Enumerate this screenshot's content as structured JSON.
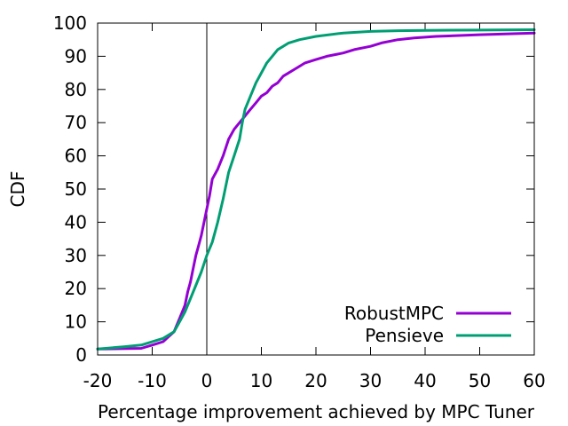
{
  "chart_data": {
    "type": "line",
    "title": "",
    "xlabel": "Percentage improvement achieved by MPC Tuner",
    "ylabel": "CDF",
    "xlim": [
      -20,
      60
    ],
    "ylim": [
      0,
      100
    ],
    "xticks": [
      -20,
      -10,
      0,
      10,
      20,
      30,
      40,
      50,
      60
    ],
    "yticks": [
      0,
      10,
      20,
      30,
      40,
      50,
      60,
      70,
      80,
      90,
      100
    ],
    "xtick_labels": [
      "-20",
      "-10",
      "0",
      "10",
      "20",
      "30",
      "40",
      "50",
      "60"
    ],
    "ytick_labels": [
      "0",
      "10",
      "20",
      "30",
      "40",
      "50",
      "60",
      "70",
      "80",
      "90",
      "100"
    ],
    "grid": false,
    "legend_position": "bottom-right",
    "reference_line_x": 0,
    "series": [
      {
        "name": "RobustMPC",
        "color": "#9400d3",
        "x": [
          -20,
          -12,
          -10,
          -8,
          -7,
          -6,
          -5,
          -4,
          -3.5,
          -3,
          -2.5,
          -2,
          -1.5,
          -1,
          -0.5,
          0,
          0.5,
          1,
          2,
          3,
          4,
          5,
          6,
          7,
          8,
          9,
          10,
          11,
          12,
          13,
          14,
          15,
          16,
          17,
          18,
          20,
          22,
          25,
          27,
          30,
          32,
          35,
          38,
          42,
          50,
          60
        ],
        "y": [
          1.8,
          2,
          3,
          4,
          5.5,
          7,
          11,
          15,
          19,
          22,
          26,
          30,
          33,
          36,
          40,
          44,
          48,
          53,
          56,
          60,
          65,
          68,
          70,
          72,
          74,
          76,
          78,
          79,
          81,
          82,
          84,
          85,
          86,
          87,
          88,
          89,
          90,
          91,
          92,
          93,
          94,
          95,
          95.5,
          96,
          96.5,
          97
        ]
      },
      {
        "name": "Pensieve",
        "color": "#009e73",
        "x": [
          -20,
          -15,
          -12,
          -10,
          -8,
          -6,
          -5,
          -4,
          -3,
          -2,
          -1,
          0,
          1,
          2,
          3,
          4,
          5,
          6,
          6.5,
          7,
          8,
          9,
          10,
          11,
          12,
          13,
          14,
          15,
          17,
          20,
          25,
          30,
          35,
          40,
          50,
          60
        ],
        "y": [
          1.8,
          2.5,
          3,
          4,
          5,
          7,
          10,
          13,
          17,
          21,
          25,
          30,
          34,
          40,
          47,
          55,
          60,
          65,
          70,
          74,
          78,
          82,
          85,
          88,
          90,
          92,
          93,
          94,
          95,
          96,
          97,
          97.5,
          97.7,
          97.8,
          97.9,
          98
        ]
      }
    ]
  }
}
